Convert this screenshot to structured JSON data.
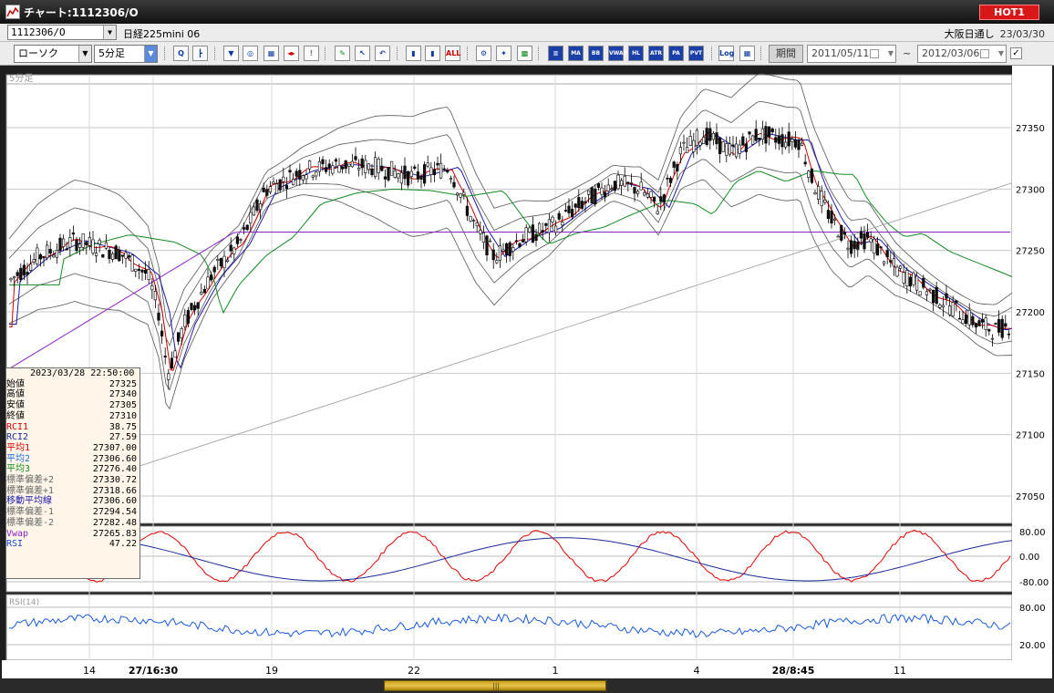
{
  "window": {
    "title": "チャート:1112306/O",
    "hot_label": "HOT1"
  },
  "symbolbar": {
    "symbol": "1112306/O",
    "name": "日経225mini 06",
    "market": "大阪日通し",
    "date": "23/03/30"
  },
  "toolbar": {
    "chart_type": "ローソク",
    "timeframe": "5分足",
    "buttons": [
      {
        "name": "zoom-tool",
        "glyph": "Q",
        "style": ""
      },
      {
        "name": "grid-tool",
        "glyph": "┣",
        "style": ""
      },
      {
        "name": "pointer-tool",
        "glyph": "▼",
        "style": ""
      },
      {
        "name": "magnifier-tool",
        "glyph": "◎",
        "style": ""
      },
      {
        "name": "chart-tool",
        "glyph": "▦",
        "style": ""
      },
      {
        "name": "arrow-tool",
        "glyph": "◂▸",
        "style": "red"
      },
      {
        "name": "info-tool",
        "glyph": "!",
        "style": "gray"
      },
      {
        "name": "pen-tool",
        "glyph": "✎",
        "style": "green"
      },
      {
        "name": "cursor-tool",
        "glyph": "↖",
        "style": ""
      },
      {
        "name": "undo-tool",
        "glyph": "↶",
        "style": ""
      },
      {
        "name": "candle-tool",
        "glyph": "▮",
        "style": ""
      },
      {
        "name": "candle2-tool",
        "glyph": "▮",
        "style": ""
      },
      {
        "name": "all-tool",
        "glyph": "ALL",
        "style": "red"
      },
      {
        "name": "settings-tool",
        "glyph": "⚙",
        "style": ""
      },
      {
        "name": "wrench-tool",
        "glyph": "✦",
        "style": ""
      },
      {
        "name": "palette-tool",
        "glyph": "▩",
        "style": "green"
      }
    ],
    "indicators": [
      "▥",
      "MA",
      "BB",
      "VWAP",
      "HL",
      "ATR",
      "PA",
      "PVT"
    ],
    "log_label": "Log",
    "extra_glyph": "▦",
    "period_label": "期間",
    "date_from": "2011/05/11",
    "date_to": "2012/03/06",
    "tilde": "~",
    "checked": "✓"
  },
  "chart": {
    "panel_label": "5分足",
    "rci_label": "RCI(9,26)",
    "rsi_label": "RSI(14)",
    "price_ticks": [
      "27350",
      "27300",
      "27250",
      "27200",
      "27150",
      "27100",
      "27050"
    ],
    "rci_ticks": [
      "80.00",
      "0.00",
      "-80.00"
    ],
    "rsi_ticks": [
      "80.00",
      "20.00"
    ],
    "x_labels": [
      {
        "text": "14",
        "bold": false
      },
      {
        "text": "27/16:30",
        "bold": true
      },
      {
        "text": "19",
        "bold": false
      },
      {
        "text": "22",
        "bold": false
      },
      {
        "text": "1",
        "bold": false
      },
      {
        "text": "4",
        "bold": false
      },
      {
        "text": "28/8:45",
        "bold": true
      },
      {
        "text": "11",
        "bold": false
      }
    ]
  },
  "info_panel": {
    "timestamp": "2023/03/28 22:50:00",
    "rows": [
      {
        "label": "始値",
        "value": "27325",
        "color": "#000000"
      },
      {
        "label": "高値",
        "value": "27340",
        "color": "#000000"
      },
      {
        "label": "安値",
        "value": "27305",
        "color": "#000000"
      },
      {
        "label": "終値",
        "value": "27310",
        "color": "#000000"
      },
      {
        "label": "RCI1",
        "value": "38.75",
        "color": "#d00000"
      },
      {
        "label": "RCI2",
        "value": "27.59",
        "color": "#1a2a9a"
      },
      {
        "label": "平均1",
        "value": "27307.00",
        "color": "#d00000"
      },
      {
        "label": "平均2",
        "value": "27306.60",
        "color": "#1e6ad8"
      },
      {
        "label": "平均3",
        "value": "27276.40",
        "color": "#118a22"
      },
      {
        "label": "標準偏差+2",
        "value": "27330.72",
        "color": "#666666"
      },
      {
        "label": "標準偏差+1",
        "value": "27318.66",
        "color": "#666666"
      },
      {
        "label": "移動平均線",
        "value": "27306.60",
        "color": "#1a1aa8"
      },
      {
        "label": "標準偏差-1",
        "value": "27294.54",
        "color": "#666666"
      },
      {
        "label": "標準偏差-2",
        "value": "27282.48",
        "color": "#666666"
      },
      {
        "label": "Vwap",
        "value": "27265.83",
        "color": "#8a22c8"
      },
      {
        "label": "RSI",
        "value": "47.22",
        "color": "#1a4ad0"
      }
    ]
  },
  "colors": {
    "candle_up": "#ffffff",
    "candle_down": "#111111",
    "ma1": "#d00000",
    "ma_center": "#1a1aa8",
    "ma3": "#118a22",
    "vwap": "#8a22c8",
    "band": "#555555",
    "rci1": "#e00000",
    "rci2": "#1a2a9a",
    "rsi": "#1a5ad8"
  }
}
